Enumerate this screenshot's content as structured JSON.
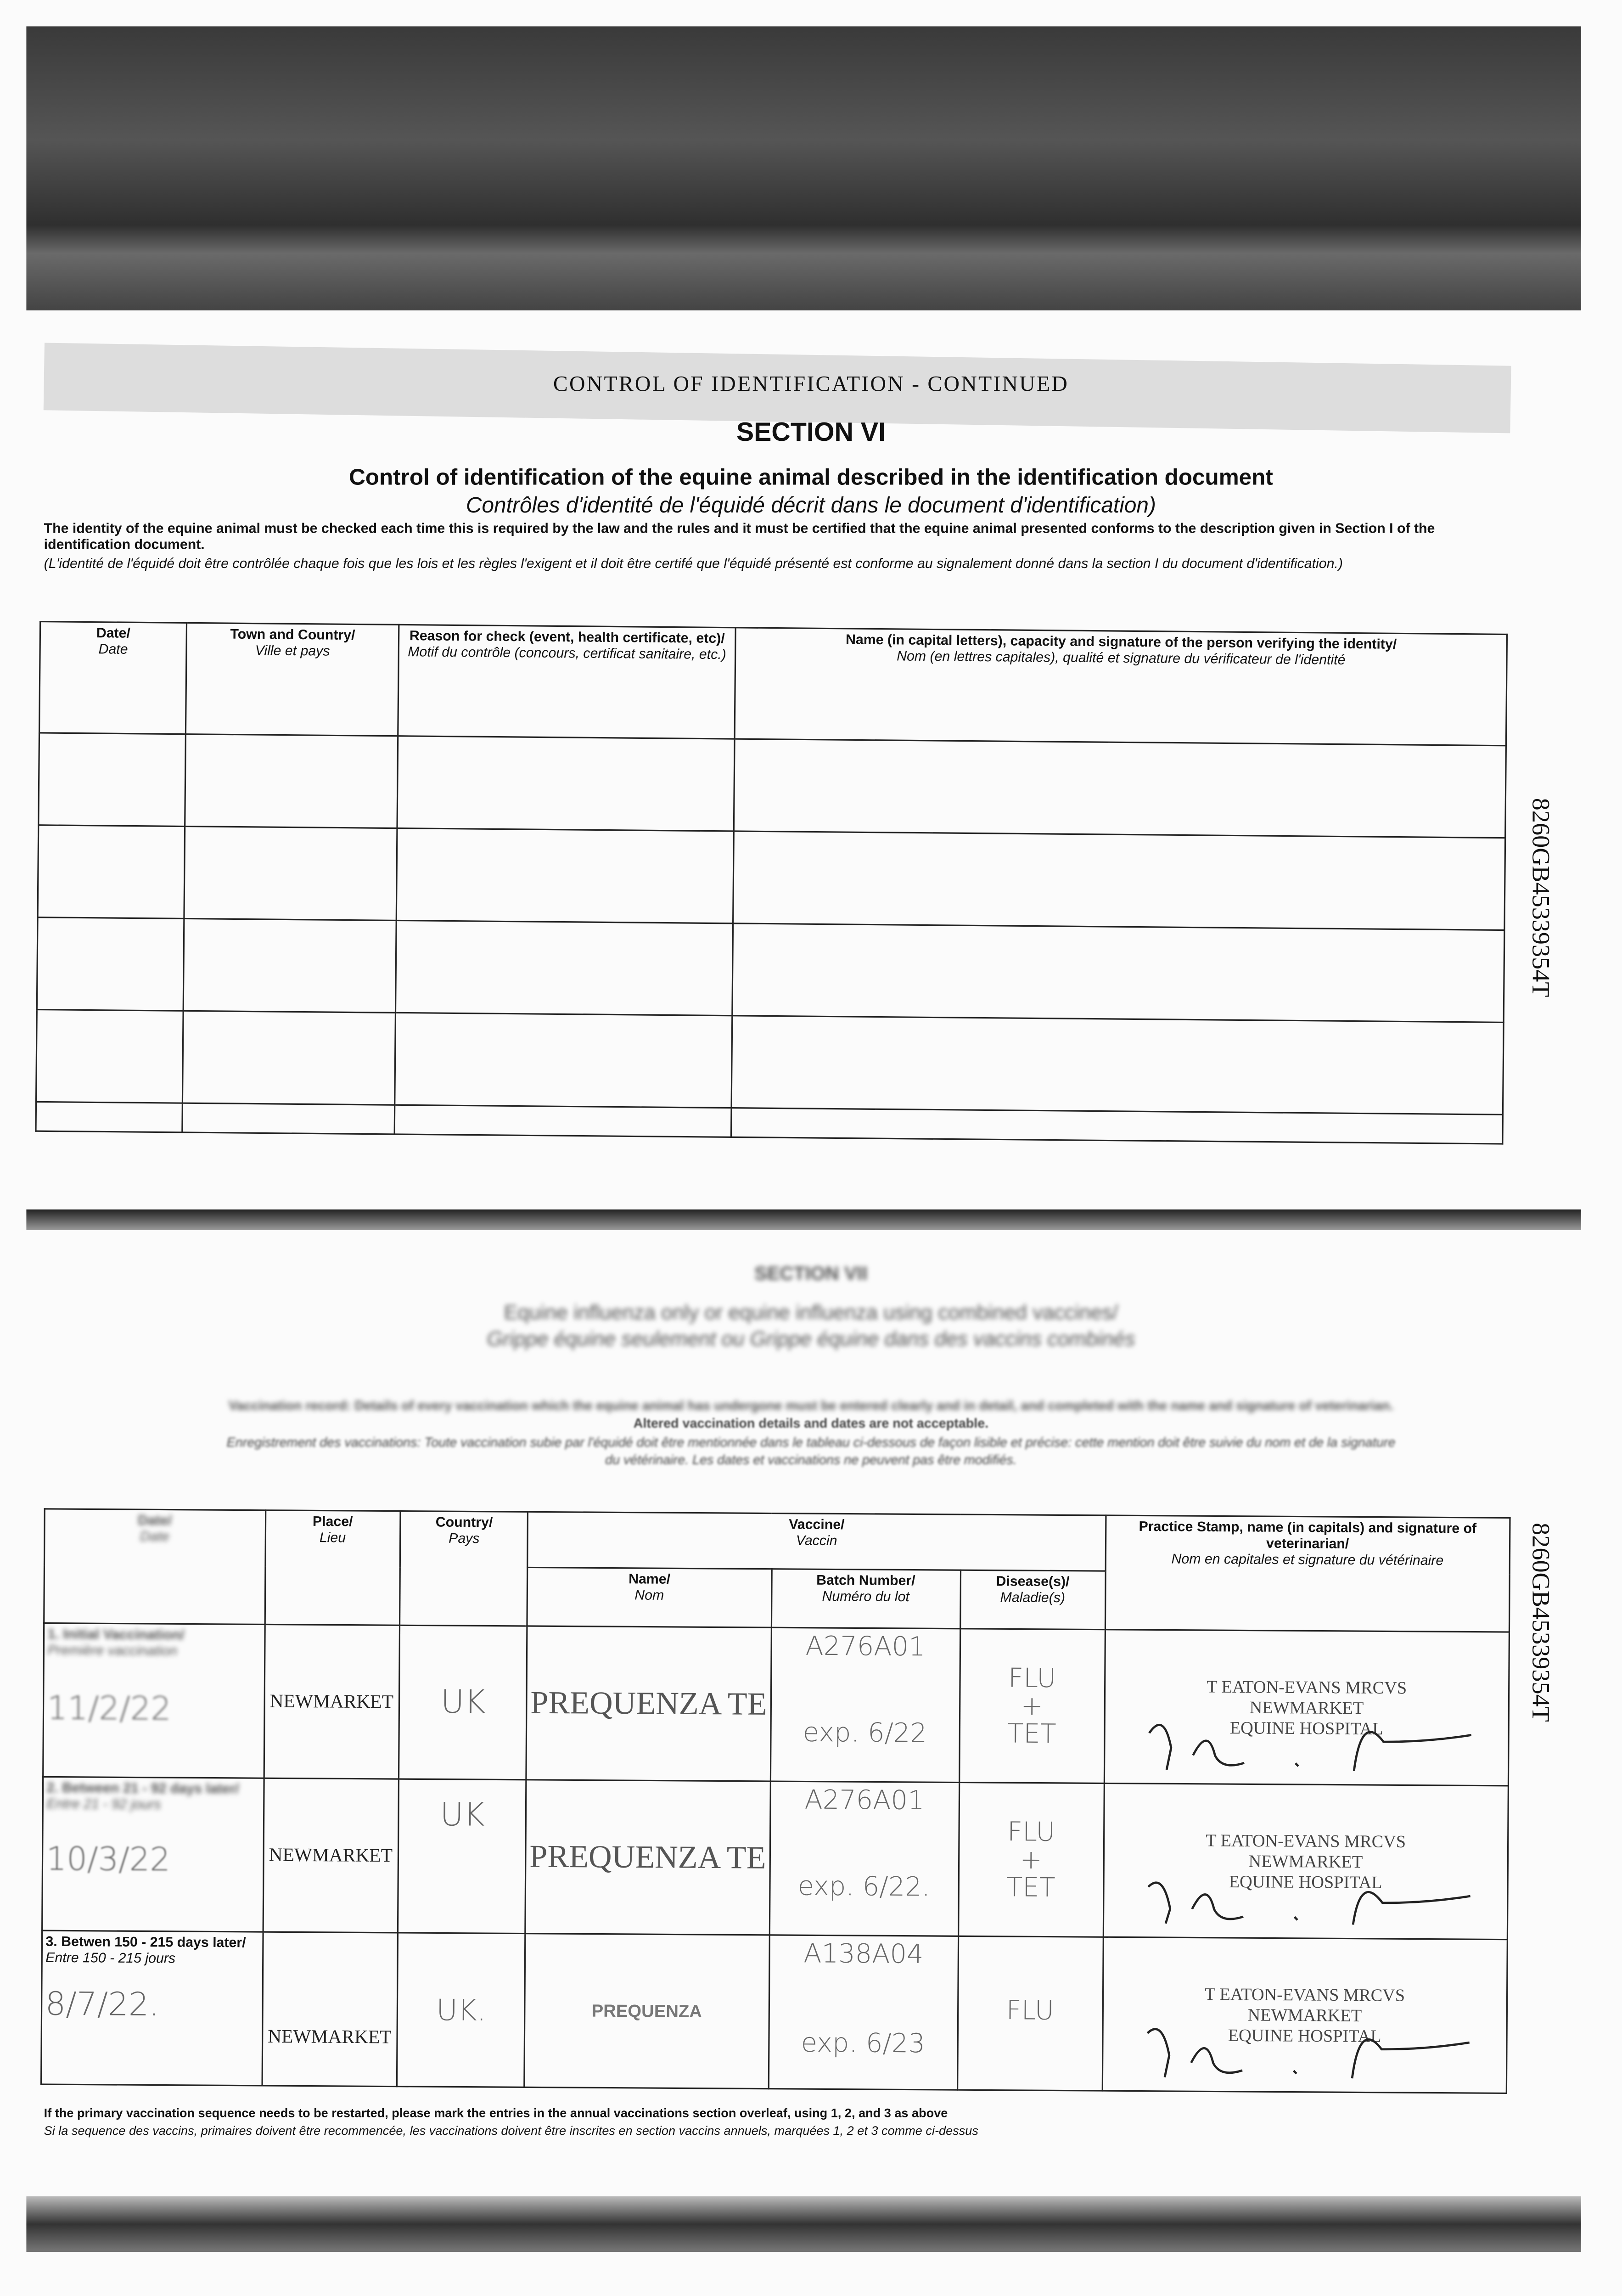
{
  "header": {
    "banner": "CONTROL OF IDENTIFICATION - CONTINUED",
    "section": "SECTION VI",
    "title_en": "Control of identification of the equine animal described in the identification document",
    "title_fr": "Contrôles d'identité de l'équidé décrit dans le document d'identification)",
    "intro_en": "The identity of the equine animal must be checked each time this is required by the law and the rules and it must be certified that the equine animal presented conforms to the description given in Section I of the identification document.",
    "intro_fr": "(L'identité de l'équidé doit être contrôlée chaque fois que les lois et les règles l'exigent et il doit être certifé que l'équidé présenté est conforme au signalement donné dans la section I du document d'identification.)"
  },
  "id_number": "8260GB45339354T",
  "control_table": {
    "headers": [
      {
        "en": "Date/",
        "fr": "Date"
      },
      {
        "en": "Town and Country/",
        "fr": "Ville et pays"
      },
      {
        "en": "Reason for check (event, health certificate, etc)/",
        "fr": "Motif du contrôle (concours, certificat sanitaire, etc.)"
      },
      {
        "en": "Name (in capital letters), capacity and signature of the person verifying the identity/",
        "fr": "Nom (en lettres capitales), qualité et signature du vérificateur de l'identité"
      }
    ],
    "row_count": 5
  },
  "section7": {
    "section": "SECTION VII",
    "title_en": "Equine influenza only or equine influenza using combined vaccines/",
    "title_fr": "Grippe équine seulement ou Grippe équine dans des vaccins combinés",
    "note_en": "Vaccination record: Details of every vaccination which the equine animal has undergone must be entered clearly and in detail, and completed with the name and signature of veterinarian.",
    "note_en2": "Altered vaccination details and dates are not acceptable.",
    "note_fr": "Enregistrement des vaccinations: Toute vaccination subie par l'équidé doit être mentionnée dans le tableau ci-dessous de façon lisible et précise: cette mention doit être suivie du nom et de la signature",
    "note_fr2": "du vétérinaire. Les dates et vaccinations ne peuvent pas être modifiés."
  },
  "vacc_table": {
    "headers": {
      "date": {
        "en": "Date/",
        "fr": "Date"
      },
      "place": {
        "en": "Place/",
        "fr": "Lieu"
      },
      "country": {
        "en": "Country/",
        "fr": "Pays"
      },
      "vaccine": {
        "en": "Vaccine/",
        "fr": "Vaccin"
      },
      "name": {
        "en": "Name/",
        "fr": "Nom"
      },
      "batch": {
        "en": "Batch Number/",
        "fr": "Numéro du lot"
      },
      "disease": {
        "en": "Disease(s)/",
        "fr": "Maladie(s)"
      },
      "stamp": {
        "en": "Practice Stamp, name (in capitals) and signature of veterinarian/",
        "fr": "Nom en capitales et signature du vétérinaire"
      }
    },
    "rows": [
      {
        "label_en": "1. Initial Vaccination/",
        "label_fr": "Première vaccination",
        "date": "11/2/22",
        "place": "NEWMARKET",
        "country": "UK",
        "vaccine": "PREQUENZA TE",
        "batch": "A276A01",
        "expiry": "exp. 6/22",
        "disease1": "FLU",
        "disease2": "+",
        "disease3": "TET",
        "stamp1": "T EATON-EVANS MRCVS",
        "stamp2": "NEWMARKET",
        "stamp3": "EQUINE HOSPITAL"
      },
      {
        "label_en": "2. Between 21 - 92 days later/",
        "label_fr": "Entre 21 - 92 jours",
        "date": "10/3/22",
        "place": "NEWMARKET",
        "country": "UK",
        "vaccine": "PREQUENZA TE",
        "batch": "A276A01",
        "expiry": "exp. 6/22.",
        "disease1": "FLU",
        "disease2": "+",
        "disease3": "TET",
        "stamp1": "T EATON-EVANS MRCVS",
        "stamp2": "NEWMARKET",
        "stamp3": "EQUINE HOSPITAL"
      },
      {
        "label_en": "3. Betwen 150 - 215 days later/",
        "label_fr": "Entre 150 - 215 jours",
        "date": "8/7/22.",
        "place": "NEWMARKET",
        "country": "UK.",
        "vaccine": "PREQUENZA",
        "batch": "A138A04",
        "expiry": "exp. 6/23",
        "disease1": "FLU",
        "disease2": "",
        "disease3": "",
        "stamp1": "T EATON-EVANS MRCVS",
        "stamp2": "NEWMARKET",
        "stamp3": "EQUINE HOSPITAL"
      }
    ]
  },
  "footnote": {
    "en": "If the primary vaccination sequence needs to be restarted, please mark the entries in the annual vaccinations section overleaf, using 1, 2, and 3 as above",
    "fr": "Si la sequence des vaccins, primaires doivent être recommencée, les vaccinations doivent être inscrites en section vaccins annuels, marquées 1, 2 et 3 comme ci-dessus"
  }
}
